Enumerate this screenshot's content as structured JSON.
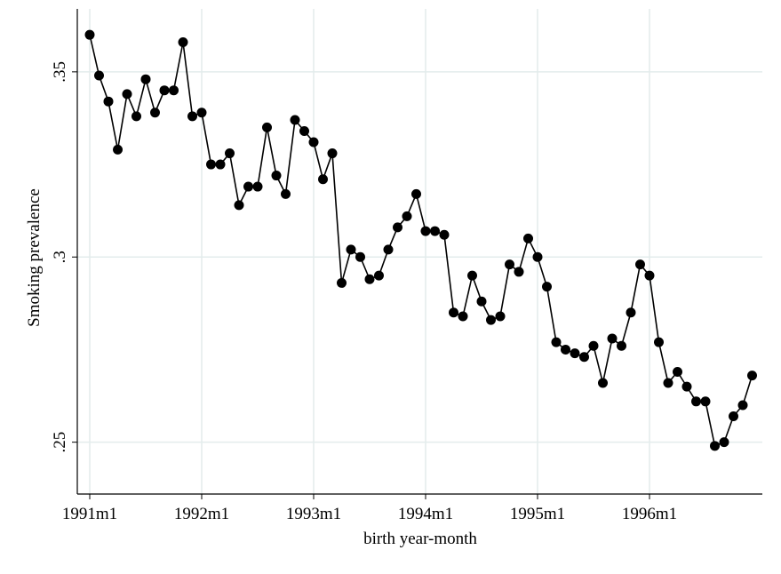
{
  "chart_data": {
    "type": "line",
    "x_label": "birth year-month",
    "y_label": "Smoking prevalence",
    "categories": [
      "1991m1",
      null,
      null,
      null,
      null,
      null,
      null,
      null,
      null,
      null,
      null,
      null,
      "1992m1",
      null,
      null,
      null,
      null,
      null,
      null,
      null,
      null,
      null,
      null,
      null,
      "1993m1",
      null,
      null,
      null,
      null,
      null,
      null,
      null,
      null,
      null,
      null,
      null,
      "1994m1",
      null,
      null,
      null,
      null,
      null,
      null,
      null,
      null,
      null,
      null,
      null,
      "1995m1",
      null,
      null,
      null,
      null,
      null,
      null,
      null,
      null,
      null,
      null,
      null,
      "1996m1",
      null,
      null,
      null,
      null,
      null,
      null,
      null,
      null,
      null,
      null,
      null
    ],
    "values": [
      0.36,
      0.349,
      0.342,
      0.329,
      0.344,
      0.338,
      0.348,
      0.339,
      0.345,
      0.345,
      0.358,
      0.338,
      0.339,
      0.325,
      0.325,
      0.328,
      0.314,
      0.319,
      0.319,
      0.335,
      0.322,
      0.317,
      0.337,
      0.334,
      0.331,
      0.321,
      0.328,
      0.293,
      0.302,
      0.3,
      0.294,
      0.295,
      0.302,
      0.308,
      0.311,
      0.317,
      0.307,
      0.307,
      0.306,
      0.285,
      0.284,
      0.295,
      0.288,
      0.283,
      0.284,
      0.298,
      0.296,
      0.305,
      0.3,
      0.292,
      0.277,
      0.275,
      0.274,
      0.273,
      0.276,
      0.266,
      0.278,
      0.276,
      0.285,
      0.298,
      0.295,
      0.277,
      0.266,
      0.269,
      0.265,
      0.261,
      0.261,
      0.249,
      0.25,
      0.257,
      0.26,
      0.268
    ],
    "color": "#000000",
    "ylim": [
      0.236,
      0.367
    ],
    "yticks": [
      {
        "value": 0.25,
        "label": ".25"
      },
      {
        "value": 0.3,
        "label": ".3"
      },
      {
        "value": 0.35,
        "label": ".35"
      }
    ],
    "grid": true
  }
}
